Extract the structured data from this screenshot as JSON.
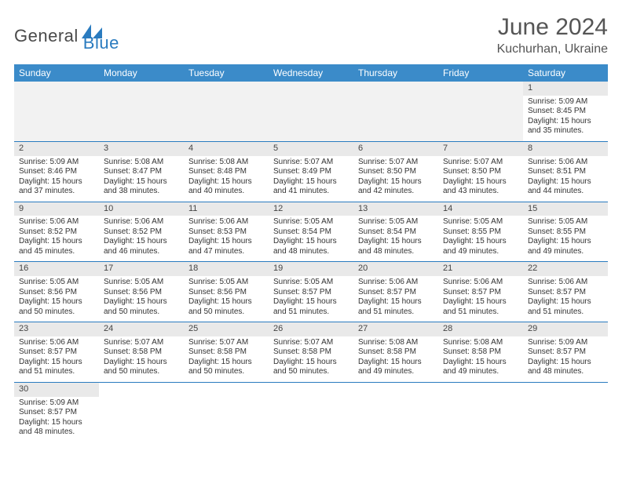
{
  "logo": {
    "text1": "General",
    "text2": "Blue"
  },
  "title": "June 2024",
  "location": "Kuchurhan, Ukraine",
  "dayHeaders": [
    "Sunday",
    "Monday",
    "Tuesday",
    "Wednesday",
    "Thursday",
    "Friday",
    "Saturday"
  ],
  "colors": {
    "headerBg": "#3b8bc9",
    "headerText": "#ffffff",
    "dayNumBg": "#e9e9e9",
    "rowBorder": "#2a7bbf",
    "logoAccent": "#2a7bbf",
    "textColor": "#333333"
  },
  "weeks": [
    [
      null,
      null,
      null,
      null,
      null,
      null,
      {
        "n": "1",
        "sr": "Sunrise: 5:09 AM",
        "ss": "Sunset: 8:45 PM",
        "d1": "Daylight: 15 hours",
        "d2": "and 35 minutes."
      }
    ],
    [
      {
        "n": "2",
        "sr": "Sunrise: 5:09 AM",
        "ss": "Sunset: 8:46 PM",
        "d1": "Daylight: 15 hours",
        "d2": "and 37 minutes."
      },
      {
        "n": "3",
        "sr": "Sunrise: 5:08 AM",
        "ss": "Sunset: 8:47 PM",
        "d1": "Daylight: 15 hours",
        "d2": "and 38 minutes."
      },
      {
        "n": "4",
        "sr": "Sunrise: 5:08 AM",
        "ss": "Sunset: 8:48 PM",
        "d1": "Daylight: 15 hours",
        "d2": "and 40 minutes."
      },
      {
        "n": "5",
        "sr": "Sunrise: 5:07 AM",
        "ss": "Sunset: 8:49 PM",
        "d1": "Daylight: 15 hours",
        "d2": "and 41 minutes."
      },
      {
        "n": "6",
        "sr": "Sunrise: 5:07 AM",
        "ss": "Sunset: 8:50 PM",
        "d1": "Daylight: 15 hours",
        "d2": "and 42 minutes."
      },
      {
        "n": "7",
        "sr": "Sunrise: 5:07 AM",
        "ss": "Sunset: 8:50 PM",
        "d1": "Daylight: 15 hours",
        "d2": "and 43 minutes."
      },
      {
        "n": "8",
        "sr": "Sunrise: 5:06 AM",
        "ss": "Sunset: 8:51 PM",
        "d1": "Daylight: 15 hours",
        "d2": "and 44 minutes."
      }
    ],
    [
      {
        "n": "9",
        "sr": "Sunrise: 5:06 AM",
        "ss": "Sunset: 8:52 PM",
        "d1": "Daylight: 15 hours",
        "d2": "and 45 minutes."
      },
      {
        "n": "10",
        "sr": "Sunrise: 5:06 AM",
        "ss": "Sunset: 8:52 PM",
        "d1": "Daylight: 15 hours",
        "d2": "and 46 minutes."
      },
      {
        "n": "11",
        "sr": "Sunrise: 5:06 AM",
        "ss": "Sunset: 8:53 PM",
        "d1": "Daylight: 15 hours",
        "d2": "and 47 minutes."
      },
      {
        "n": "12",
        "sr": "Sunrise: 5:05 AM",
        "ss": "Sunset: 8:54 PM",
        "d1": "Daylight: 15 hours",
        "d2": "and 48 minutes."
      },
      {
        "n": "13",
        "sr": "Sunrise: 5:05 AM",
        "ss": "Sunset: 8:54 PM",
        "d1": "Daylight: 15 hours",
        "d2": "and 48 minutes."
      },
      {
        "n": "14",
        "sr": "Sunrise: 5:05 AM",
        "ss": "Sunset: 8:55 PM",
        "d1": "Daylight: 15 hours",
        "d2": "and 49 minutes."
      },
      {
        "n": "15",
        "sr": "Sunrise: 5:05 AM",
        "ss": "Sunset: 8:55 PM",
        "d1": "Daylight: 15 hours",
        "d2": "and 49 minutes."
      }
    ],
    [
      {
        "n": "16",
        "sr": "Sunrise: 5:05 AM",
        "ss": "Sunset: 8:56 PM",
        "d1": "Daylight: 15 hours",
        "d2": "and 50 minutes."
      },
      {
        "n": "17",
        "sr": "Sunrise: 5:05 AM",
        "ss": "Sunset: 8:56 PM",
        "d1": "Daylight: 15 hours",
        "d2": "and 50 minutes."
      },
      {
        "n": "18",
        "sr": "Sunrise: 5:05 AM",
        "ss": "Sunset: 8:56 PM",
        "d1": "Daylight: 15 hours",
        "d2": "and 50 minutes."
      },
      {
        "n": "19",
        "sr": "Sunrise: 5:05 AM",
        "ss": "Sunset: 8:57 PM",
        "d1": "Daylight: 15 hours",
        "d2": "and 51 minutes."
      },
      {
        "n": "20",
        "sr": "Sunrise: 5:06 AM",
        "ss": "Sunset: 8:57 PM",
        "d1": "Daylight: 15 hours",
        "d2": "and 51 minutes."
      },
      {
        "n": "21",
        "sr": "Sunrise: 5:06 AM",
        "ss": "Sunset: 8:57 PM",
        "d1": "Daylight: 15 hours",
        "d2": "and 51 minutes."
      },
      {
        "n": "22",
        "sr": "Sunrise: 5:06 AM",
        "ss": "Sunset: 8:57 PM",
        "d1": "Daylight: 15 hours",
        "d2": "and 51 minutes."
      }
    ],
    [
      {
        "n": "23",
        "sr": "Sunrise: 5:06 AM",
        "ss": "Sunset: 8:57 PM",
        "d1": "Daylight: 15 hours",
        "d2": "and 51 minutes."
      },
      {
        "n": "24",
        "sr": "Sunrise: 5:07 AM",
        "ss": "Sunset: 8:58 PM",
        "d1": "Daylight: 15 hours",
        "d2": "and 50 minutes."
      },
      {
        "n": "25",
        "sr": "Sunrise: 5:07 AM",
        "ss": "Sunset: 8:58 PM",
        "d1": "Daylight: 15 hours",
        "d2": "and 50 minutes."
      },
      {
        "n": "26",
        "sr": "Sunrise: 5:07 AM",
        "ss": "Sunset: 8:58 PM",
        "d1": "Daylight: 15 hours",
        "d2": "and 50 minutes."
      },
      {
        "n": "27",
        "sr": "Sunrise: 5:08 AM",
        "ss": "Sunset: 8:58 PM",
        "d1": "Daylight: 15 hours",
        "d2": "and 49 minutes."
      },
      {
        "n": "28",
        "sr": "Sunrise: 5:08 AM",
        "ss": "Sunset: 8:58 PM",
        "d1": "Daylight: 15 hours",
        "d2": "and 49 minutes."
      },
      {
        "n": "29",
        "sr": "Sunrise: 5:09 AM",
        "ss": "Sunset: 8:57 PM",
        "d1": "Daylight: 15 hours",
        "d2": "and 48 minutes."
      }
    ],
    [
      {
        "n": "30",
        "sr": "Sunrise: 5:09 AM",
        "ss": "Sunset: 8:57 PM",
        "d1": "Daylight: 15 hours",
        "d2": "and 48 minutes."
      },
      null,
      null,
      null,
      null,
      null,
      null
    ]
  ]
}
